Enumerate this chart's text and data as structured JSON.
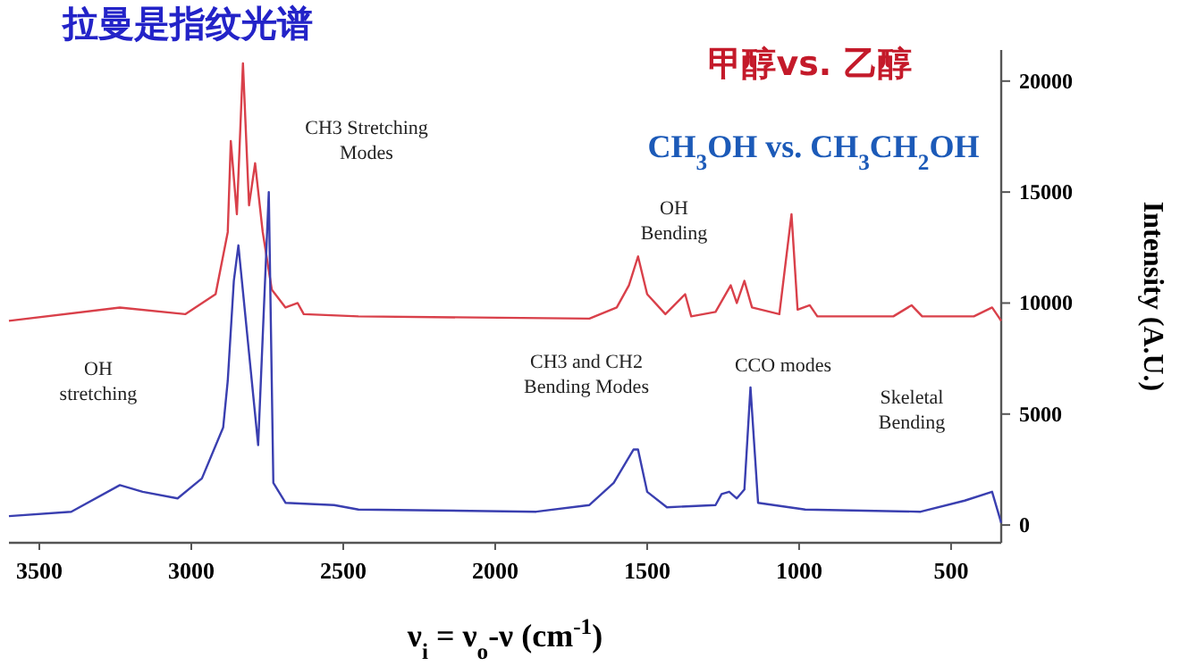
{
  "chart_data": {
    "type": "line",
    "title": "拉曼是指纹光谱",
    "subtitle": "甲醇vs. 乙醇",
    "xlabel": "ν$_{i}$ = ν$_{o}$-ν (cm$^{-1}$)",
    "ylabel": "Intensity (A.U.)",
    "xlim": [
      3600,
      335
    ],
    "xticks": [
      3500,
      3000,
      2500,
      2000,
      1500,
      1000,
      500
    ],
    "ylim": [
      -800,
      21400
    ],
    "yticks": [
      0,
      5000,
      10000,
      15000,
      20000
    ],
    "grid": false,
    "marker": "none",
    "line_style": "solid",
    "annotations": [
      "CH$_{3}$OH vs. CH$_{3}$CH$_{2}$OH",
      "CH3 Stretching Modes",
      "OH Bending",
      "OH stretching",
      "CH3 and CH2 Bending Modes",
      "CCO modes",
      "Skeletal Bending"
    ],
    "series": [
      {
        "color": "#d9404a",
        "x": [
          3600,
          3235,
          3020,
          2920,
          2880,
          2870,
          2850,
          2830,
          2810,
          2790,
          2765,
          2735,
          2690,
          2650,
          2630,
          2450,
          1690,
          1600,
          1560,
          1530,
          1500,
          1440,
          1375,
          1355,
          1275,
          1225,
          1205,
          1180,
          1155,
          1065,
          1025,
          1005,
          965,
          940,
          690,
          630,
          595,
          425,
          365,
          335
        ],
        "values": [
          9200,
          9800,
          9500,
          10400,
          13200,
          17300,
          14000,
          20800,
          14400,
          16300,
          13200,
          10600,
          9800,
          10000,
          9500,
          9400,
          9300,
          9800,
          10800,
          12100,
          10400,
          9500,
          10400,
          9400,
          9600,
          10800,
          10000,
          11000,
          9800,
          9500,
          14000,
          9700,
          9900,
          9400,
          9400,
          9900,
          9400,
          9400,
          9800,
          9200
        ]
      },
      {
        "color": "#3a3fb0",
        "x": [
          3600,
          3395,
          3235,
          3160,
          3045,
          2965,
          2895,
          2880,
          2860,
          2845,
          2780,
          2745,
          2730,
          2690,
          2530,
          2450,
          1865,
          1690,
          1610,
          1545,
          1530,
          1500,
          1435,
          1275,
          1255,
          1230,
          1205,
          1180,
          1160,
          1135,
          980,
          600,
          455,
          365,
          335
        ],
        "values": [
          400,
          600,
          1800,
          1500,
          1200,
          2100,
          4400,
          6500,
          11000,
          12600,
          3600,
          15000,
          1900,
          1000,
          900,
          700,
          600,
          900,
          1900,
          3400,
          3400,
          1500,
          800,
          900,
          1400,
          1500,
          1200,
          1600,
          6200,
          1000,
          700,
          600,
          1100,
          1500,
          100
        ]
      }
    ]
  }
}
